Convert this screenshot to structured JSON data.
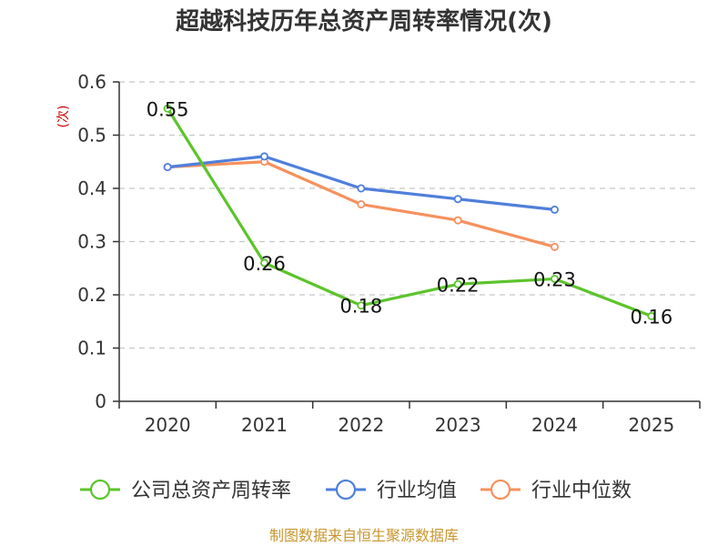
{
  "chart_data": {
    "type": "line",
    "title": "超越科技历年总资产周转率情况(次)",
    "ylabel": "(次)",
    "xlabel": "",
    "categories": [
      "2020",
      "2021",
      "2022",
      "2023",
      "2024",
      "2025"
    ],
    "y_ticks": [
      "0",
      "0.1",
      "0.2",
      "0.3",
      "0.4",
      "0.5",
      "0.6"
    ],
    "ylim": [
      0,
      0.6
    ],
    "grid": true,
    "legend_position": "bottom",
    "series": [
      {
        "name": "公司总资产周转率",
        "color": "#5cc42b",
        "values": [
          0.55,
          0.26,
          0.18,
          0.22,
          0.23,
          0.16
        ],
        "labels": [
          "0.55",
          "0.26",
          "0.18",
          "0.22",
          "0.23",
          "0.16"
        ],
        "show_labels": true
      },
      {
        "name": "行业均值",
        "color": "#4f7fdb",
        "values": [
          0.44,
          0.46,
          0.4,
          0.38,
          0.36,
          null
        ],
        "show_labels": false
      },
      {
        "name": "行业中位数",
        "color": "#f6915e",
        "values": [
          0.44,
          0.45,
          0.37,
          0.34,
          0.29,
          null
        ],
        "show_labels": false
      }
    ],
    "source": "制图数据来自恒生聚源数据库"
  }
}
